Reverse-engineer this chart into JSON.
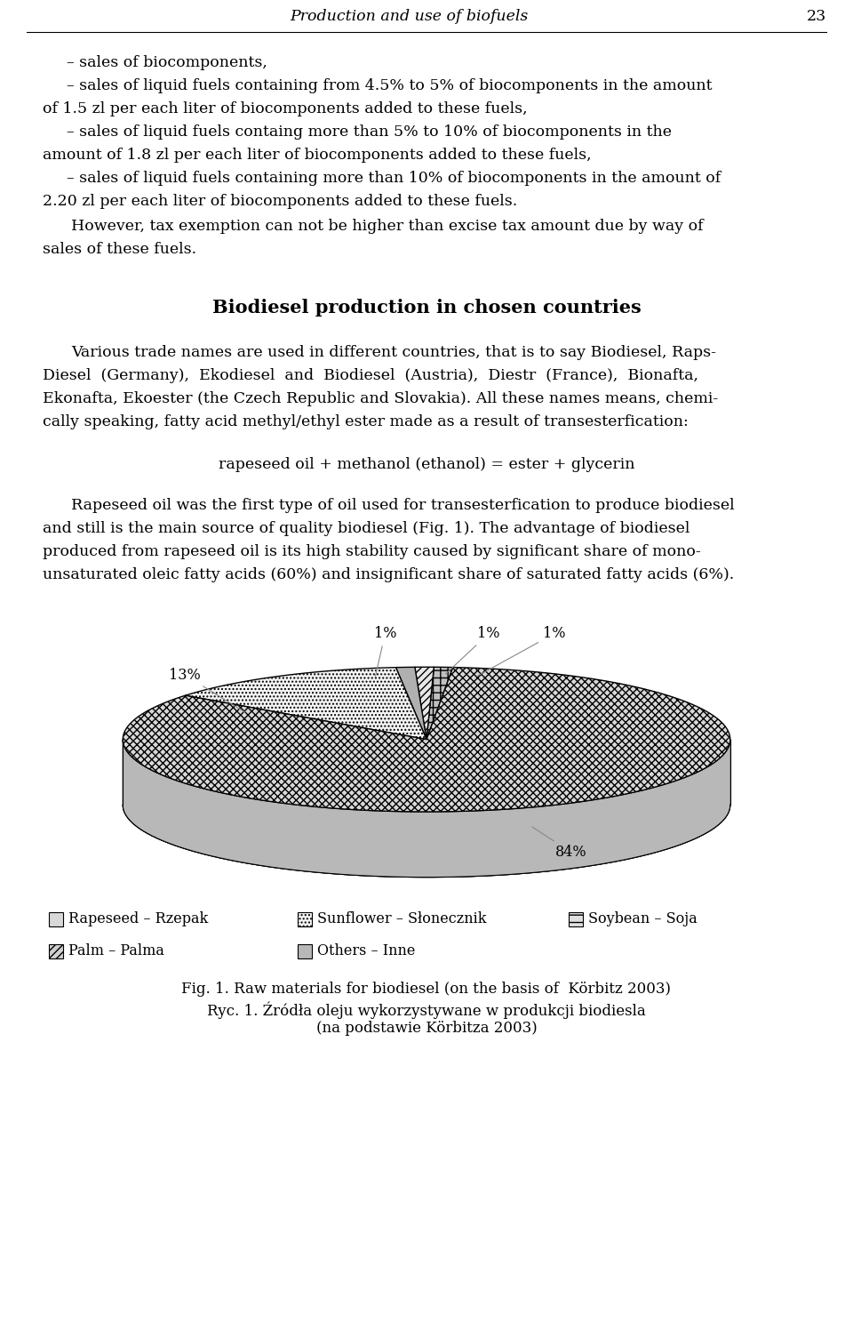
{
  "header_title": "Production and use of biofuels",
  "header_page": "23",
  "para1_lines": [
    "– sales of biocomponents,",
    "– sales of liquid fuels containing from 4.5% to 5% of biocomponents in the amount",
    "of 1.5 zl per each liter of biocomponents added to these fuels,",
    "– sales of liquid fuels containg more than 5% to 10% of biocomponents in the",
    "amount of 1.8 zl per each liter of biocomponents added to these fuels,",
    "– sales of liquid fuels containing more than 10% of biocomponents in the amount of",
    "2.20 zl per each liter of biocomponents added to these fuels."
  ],
  "para2_lines": [
    "However, tax exemption can not be higher than excise tax amount due by way of",
    "sales of these fuels."
  ],
  "section_title": "Biodiesel production in chosen countries",
  "body_para1_lines": [
    "Various trade names are used in different countries, that is to say Biodiesel, Raps-",
    "Diesel  (Germany),  Ekodiesel  and  Biodiesel  (Austria),  Diestr  (France),  Bionafta,",
    "Ekonafta, Ekoester (the Czech Republic and Slovakia). All these names means, chemi-",
    "cally speaking, fatty acid methyl/ethyl ester made as a result of transesterfication:"
  ],
  "formula": "rapeseed oil + methanol (ethanol) = ester + glycerin",
  "body_para2_lines": [
    "Rapeseed oil was the first type of oil used for transesterfication to produce biodiesel",
    "and still is the main source of quality biodiesel (Fig. 1). The advantage of biodiesel",
    "produced from rapeseed oil is its high stability caused by significant share of mono-",
    "unsaturated oleic fatty acids (60%) and insignificant share of saturated fatty acids (6%)."
  ],
  "pie_values": [
    84,
    13,
    1,
    1,
    1
  ],
  "pie_labels": [
    "84%",
    "13%",
    "1%",
    "1%",
    "1%"
  ],
  "legend_items": [
    "Rapeseed – Rzepak",
    "Sunflower – Słonecznik",
    "Soybean – Soja",
    "Palm – Palma",
    "Others – Inne"
  ],
  "fig_caption_line1": "Fig. 1. Raw materials for biodiesel (on the basis of  ",
  "fig_caption_bold1": "Körbitz",
  "fig_caption_line1_end": " 2003)",
  "fig_caption_line2": "Ryc. 1. Źródła oleju wykorzystywane w produkcji biodiesla",
  "fig_caption_line3": "(na podstawie ",
  "fig_caption_bold3": "Körbitza",
  "fig_caption_line3_end": " 2003)",
  "bg_color": "#ffffff"
}
